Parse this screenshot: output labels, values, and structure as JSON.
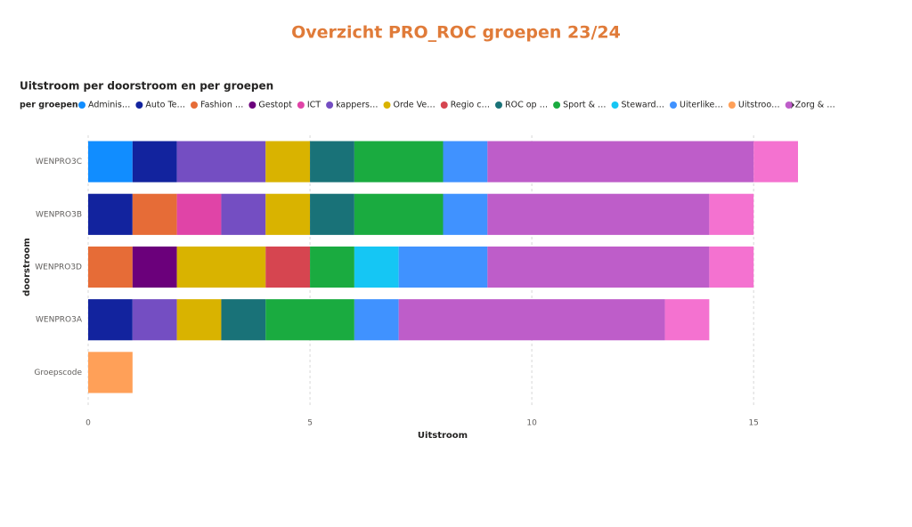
{
  "chart_data": {
    "type": "stacked-bar-horizontal",
    "title": "Overzicht PRO_ROC groepen 23/24",
    "subtitle": "Uitstroom per doorstroom en per groepen",
    "legend_title": "per groepen",
    "x_label": "Uitstroom",
    "y_label": "doorstroom",
    "categories": [
      "WENPRO3C",
      "WENPRO3B",
      "WENPRO3D",
      "WENPRO3A",
      "Groepscode"
    ],
    "xlim": [
      0,
      16
    ],
    "xticks": [
      0,
      5,
      10,
      15
    ],
    "grid": true,
    "series": [
      {
        "name": "Adminis…",
        "color": "#118DFF",
        "values": [
          1,
          null,
          null,
          null,
          null
        ]
      },
      {
        "name": "Auto Te…",
        "color": "#12239E",
        "values": [
          1,
          1,
          null,
          1,
          null
        ]
      },
      {
        "name": "Fashion …",
        "color": "#E66C37",
        "values": [
          null,
          1,
          1,
          null,
          null
        ]
      },
      {
        "name": "Gestopt",
        "color": "#6B007B",
        "values": [
          null,
          null,
          1,
          null,
          null
        ]
      },
      {
        "name": "ICT",
        "color": "#E044A7",
        "values": [
          null,
          1,
          null,
          null,
          null
        ]
      },
      {
        "name": "kappers…",
        "color": "#744EC2",
        "values": [
          2,
          1,
          null,
          1,
          null
        ]
      },
      {
        "name": "Orde Ve…",
        "color": "#D9B300",
        "values": [
          1,
          1,
          2,
          1,
          null
        ]
      },
      {
        "name": "Regio c…",
        "color": "#D64550",
        "values": [
          null,
          null,
          1,
          null,
          null
        ]
      },
      {
        "name": "ROC op …",
        "color": "#197278",
        "values": [
          1,
          1,
          null,
          1,
          null
        ]
      },
      {
        "name": "Sport & …",
        "color": "#1AAB40",
        "values": [
          2,
          2,
          1,
          2,
          null
        ]
      },
      {
        "name": "Steward…",
        "color": "#15C6F4",
        "values": [
          null,
          null,
          1,
          null,
          null
        ]
      },
      {
        "name": "Uiterlike…",
        "color": "#4092FF",
        "values": [
          1,
          1,
          2,
          1,
          null
        ]
      },
      {
        "name": "Uitstroo…",
        "color": "#FFA058",
        "values": [
          null,
          null,
          null,
          null,
          1
        ]
      },
      {
        "name": "Zorg & …",
        "color": "#BE5DC9",
        "values": [
          6,
          5,
          5,
          6,
          null
        ]
      },
      {
        "name": null,
        "color": "#F472D0",
        "values": [
          1,
          1,
          1,
          1,
          null
        ]
      }
    ]
  }
}
